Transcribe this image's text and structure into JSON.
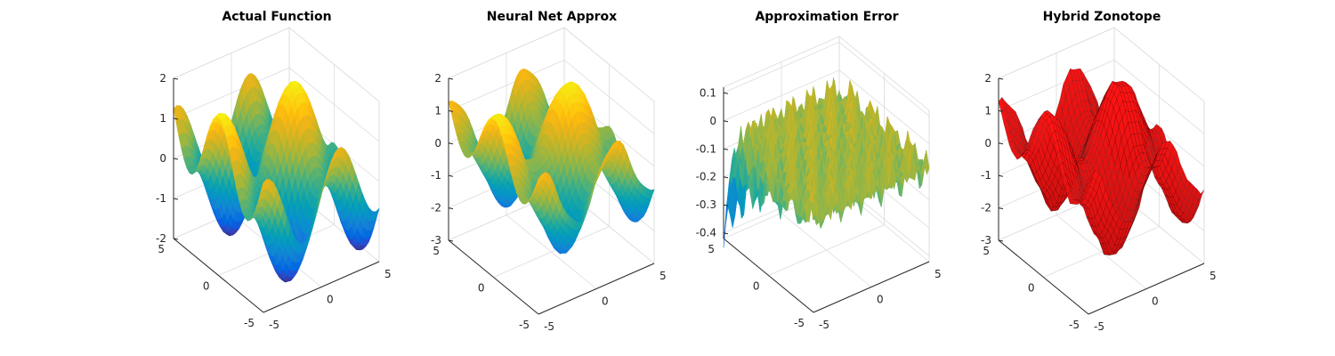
{
  "figure": {
    "background": "#ffffff"
  },
  "chart_data": [
    {
      "type": "surface",
      "title": "Actual Function",
      "surface": "sin(x)+cos(y)",
      "colormap": "parula",
      "edges": "none",
      "x_ticks": [
        -5,
        0,
        5
      ],
      "y_ticks": [
        -5,
        0,
        5
      ],
      "z_ticks": [
        -2,
        -1,
        0,
        1,
        2
      ],
      "xlim": [
        -5,
        5
      ],
      "ylim": [
        -5,
        5
      ],
      "zlim": [
        -2,
        2
      ],
      "grid": true
    },
    {
      "type": "surface",
      "title": "Neural Net Approx",
      "surface": "sin(x)+cos(y), neural network approximation",
      "colormap": "parula",
      "edges": "none",
      "x_ticks": [
        -5,
        0,
        5
      ],
      "y_ticks": [
        -5,
        0,
        5
      ],
      "z_ticks": [
        -3,
        -2,
        -1,
        0,
        1,
        2
      ],
      "xlim": [
        -5,
        5
      ],
      "ylim": [
        -5,
        5
      ],
      "zlim": [
        -3,
        2
      ],
      "grid": true
    },
    {
      "type": "surface",
      "title": "Approximation Error",
      "surface": "error between neural net approximation and actual function",
      "colormap": "parula",
      "edges": "none",
      "x_ticks": [
        -5,
        0,
        5
      ],
      "y_ticks": [
        -5,
        0,
        5
      ],
      "z_ticks": [
        -0.4,
        -0.3,
        -0.2,
        -0.1,
        0,
        0.1
      ],
      "xlim": [
        -5,
        5
      ],
      "ylim": [
        -5,
        5
      ],
      "zlim": [
        -0.42,
        0.12
      ],
      "grid": true
    },
    {
      "type": "surface",
      "title": "Hybrid Zonotope",
      "surface": "hybrid zonotope set of neural net",
      "color": "#ff0000",
      "edge_color": "#000000",
      "x_ticks": [
        -5,
        0,
        5
      ],
      "y_ticks": [
        -5,
        0,
        5
      ],
      "z_ticks": [
        -3,
        -2,
        -1,
        0,
        1,
        2
      ],
      "xlim": [
        -5,
        5
      ],
      "ylim": [
        -5,
        5
      ],
      "zlim": [
        -3,
        2
      ],
      "grid": true
    }
  ]
}
